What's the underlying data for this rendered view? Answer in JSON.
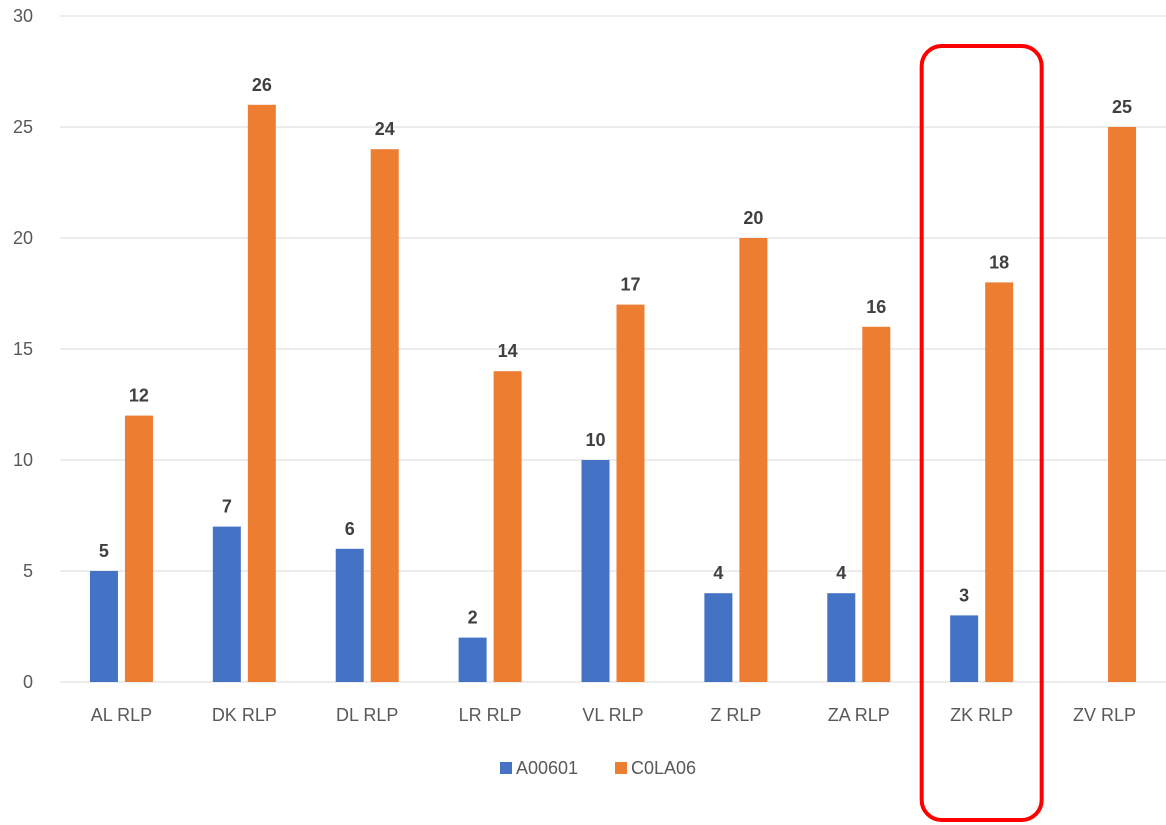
{
  "chart_data": {
    "type": "bar",
    "categories": [
      "AL RLP",
      "DK RLP",
      "DL RLP",
      "LR RLP",
      "VL RLP",
      "Z RLP",
      "ZA RLP",
      "ZK RLP",
      "ZV RLP"
    ],
    "series": [
      {
        "name": "A00601",
        "values": [
          5,
          7,
          6,
          2,
          10,
          4,
          4,
          3,
          null
        ],
        "color": "#4472C4"
      },
      {
        "name": "C0LA06",
        "values": [
          12,
          26,
          24,
          14,
          17,
          20,
          16,
          18,
          25
        ],
        "color": "#ED7D31"
      }
    ],
    "ylim": [
      0,
      30
    ],
    "yticks": [
      0,
      5,
      10,
      15,
      20,
      25,
      30
    ],
    "grid": true,
    "legend_position": "bottom",
    "data_labels": true,
    "highlight": {
      "category": "ZK RLP",
      "color": "#FF0000"
    }
  }
}
